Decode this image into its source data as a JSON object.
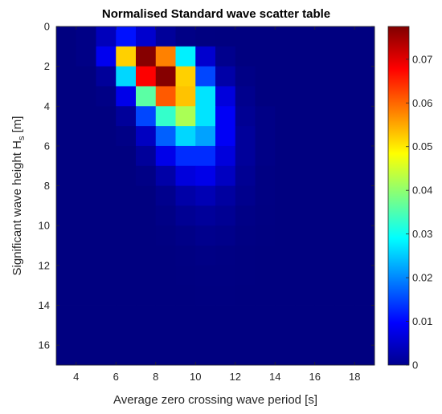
{
  "chart_data": {
    "type": "heatmap",
    "title": "Normalised Standard wave scatter table",
    "xlabel": "Average zero crossing wave period [s]",
    "ylabel_main": "Significant wave height H",
    "ylabel_sub": "s",
    "ylabel_unit": " [m]",
    "xlim": [
      3,
      19
    ],
    "ylim": [
      0,
      17
    ],
    "x_ticks": [
      4,
      6,
      8,
      10,
      12,
      14,
      16,
      18
    ],
    "y_ticks": [
      0,
      2,
      4,
      6,
      8,
      10,
      12,
      14,
      16
    ],
    "clim": [
      0,
      0.0775
    ],
    "colorbar_ticks": [
      0,
      0.01,
      0.02,
      0.03,
      0.04,
      0.05,
      0.06,
      0.07
    ],
    "colorbar_tick_labels": [
      "0",
      "0.01",
      "0.02",
      "0.03",
      "0.04",
      "0.05",
      "0.06",
      "0.07"
    ],
    "colormap": "jet",
    "cell_width_s": 1,
    "cell_height_m": 1,
    "x_centers": [
      3.5,
      4.5,
      5.5,
      6.5,
      7.5,
      8.5,
      9.5,
      10.5,
      11.5,
      12.5,
      13.5,
      14.5,
      15.5,
      16.5,
      17.5,
      18.5
    ],
    "y_centers": [
      0.5,
      1.5,
      2.5,
      3.5,
      4.5,
      5.5,
      6.5,
      7.5,
      8.5,
      9.5,
      10.5,
      11.5,
      12.5,
      13.5,
      14.5,
      15.5,
      16.5
    ],
    "values": [
      [
        0,
        0.0005,
        0.0045,
        0.011,
        0.006,
        0.002,
        0.0005,
        0.0001,
        0,
        0,
        0,
        0,
        0,
        0,
        0,
        0
      ],
      [
        0,
        0.0005,
        0.0085,
        0.052,
        0.077,
        0.058,
        0.028,
        0.006,
        0.001,
        0,
        0,
        0,
        0,
        0,
        0,
        0
      ],
      [
        0,
        0,
        0.002,
        0.026,
        0.068,
        0.077,
        0.052,
        0.015,
        0.003,
        0.0005,
        0,
        0,
        0,
        0,
        0,
        0
      ],
      [
        0,
        0,
        0.0005,
        0.008,
        0.036,
        0.061,
        0.053,
        0.027,
        0.007,
        0.001,
        0,
        0,
        0,
        0,
        0,
        0
      ],
      [
        0,
        0,
        0,
        0.002,
        0.015,
        0.033,
        0.042,
        0.027,
        0.009,
        0.0015,
        0.0005,
        0,
        0,
        0,
        0,
        0
      ],
      [
        0,
        0,
        0,
        0.0005,
        0.005,
        0.017,
        0.026,
        0.022,
        0.009,
        0.002,
        0.0005,
        0,
        0,
        0,
        0,
        0
      ],
      [
        0,
        0,
        0,
        0,
        0.002,
        0.008,
        0.013,
        0.013,
        0.007,
        0.002,
        0.0005,
        0,
        0,
        0,
        0,
        0
      ],
      [
        0,
        0,
        0,
        0,
        0.0005,
        0.003,
        0.007,
        0.008,
        0.005,
        0.0015,
        0.0003,
        0,
        0,
        0,
        0,
        0
      ],
      [
        0,
        0,
        0,
        0,
        0,
        0.001,
        0.003,
        0.004,
        0.0025,
        0.001,
        0.0003,
        0,
        0,
        0,
        0,
        0
      ],
      [
        0,
        0,
        0,
        0,
        0,
        0.0005,
        0.0015,
        0.002,
        0.0015,
        0.0005,
        0.0002,
        0,
        0,
        0,
        0,
        0
      ],
      [
        0,
        0,
        0,
        0,
        0,
        0.0002,
        0.0006,
        0.001,
        0.0008,
        0.0003,
        0.0001,
        0,
        0,
        0,
        0,
        0
      ],
      [
        0,
        0,
        0,
        0,
        0,
        0,
        0.0002,
        0.0004,
        0.0003,
        0.0001,
        0,
        0,
        0,
        0,
        0,
        0
      ],
      [
        0,
        0,
        0,
        0,
        0,
        0,
        0.0001,
        0.0002,
        0.0002,
        0.0001,
        0,
        0,
        0,
        0,
        0,
        0
      ],
      [
        0,
        0,
        0,
        0,
        0,
        0,
        0,
        0.0001,
        0.0001,
        0,
        0,
        0,
        0,
        0,
        0,
        0
      ],
      [
        0,
        0,
        0,
        0,
        0,
        0,
        0,
        0,
        0,
        0,
        0,
        0,
        0,
        0,
        0,
        0
      ],
      [
        0,
        0,
        0,
        0,
        0,
        0,
        0,
        0,
        0,
        0,
        0,
        0,
        0,
        0,
        0,
        0
      ],
      [
        0,
        0,
        0,
        0,
        0,
        0,
        0,
        0,
        0,
        0,
        0,
        0,
        0,
        0,
        0,
        0
      ]
    ]
  }
}
